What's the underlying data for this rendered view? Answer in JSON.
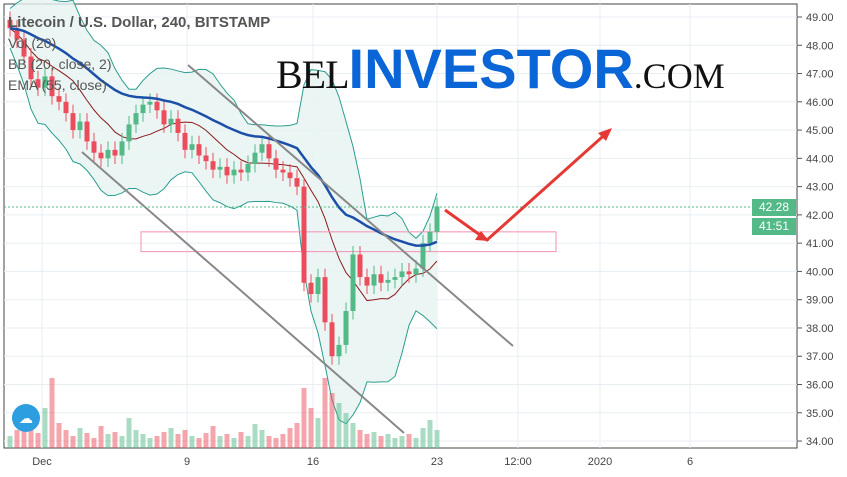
{
  "chart_data": {
    "type": "candlestick",
    "title": "Litecoin / U.S. Dollar, 240, BITSTAMP",
    "indicators": [
      "Vol (20)",
      "BB (20, close, 2)",
      "EMA (55, close)"
    ],
    "y_ticks": [
      "49.00",
      "48.00",
      "47.00",
      "46.00",
      "45.00",
      "44.00",
      "43.00",
      "42.00",
      "41.00",
      "40.00",
      "39.00",
      "38.00",
      "37.00",
      "36.00",
      "35.00",
      "34.00"
    ],
    "ylim": [
      34,
      49
    ],
    "x_ticks": [
      "Dec",
      "9",
      "16",
      "23",
      "12:00",
      "2020",
      "6"
    ],
    "last_price": "42.28",
    "countdown": "41:51",
    "closes": [
      48.6,
      48.2,
      47.6,
      46.8,
      46.5,
      46.9,
      46.2,
      46.0,
      45.6,
      45.0,
      45.3,
      44.6,
      44.2,
      44.0,
      44.3,
      44.1,
      44.6,
      45.2,
      45.6,
      45.9,
      46.0,
      45.7,
      45.2,
      45.4,
      44.9,
      44.3,
      44.5,
      44.1,
      43.9,
      43.6,
      43.7,
      43.4,
      43.6,
      43.5,
      43.8,
      44.2,
      44.5,
      44.0,
      43.6,
      43.5,
      43.3,
      43.0,
      39.6,
      39.2,
      39.8,
      38.2,
      37.0,
      37.4,
      38.6,
      40.6,
      39.8,
      39.5,
      39.9,
      39.6,
      39.7,
      39.8,
      40.0,
      39.9,
      40.1,
      41.0,
      41.4,
      42.3
    ],
    "volumes": [
      12,
      18,
      30,
      22,
      15,
      40,
      70,
      25,
      18,
      12,
      20,
      15,
      10,
      22,
      14,
      16,
      12,
      30,
      18,
      14,
      10,
      12,
      16,
      20,
      14,
      18,
      12,
      10,
      15,
      22,
      12,
      14,
      10,
      16,
      12,
      24,
      18,
      12,
      10,
      14,
      20,
      25,
      60,
      40,
      30,
      70,
      55,
      45,
      35,
      25,
      18,
      14,
      16,
      12,
      14,
      10,
      12,
      14,
      10,
      20,
      28,
      18
    ],
    "trendlines": [
      {
        "from": [
          "Dec 7",
          47.2
        ],
        "to": [
          "Dec 27",
          37.7
        ]
      },
      {
        "from": [
          "Dec 3",
          44.1
        ],
        "to": [
          "Dec 22",
          34.3
        ]
      }
    ],
    "zone": [
      40.7,
      41.4
    ],
    "colors": {
      "up": "#53b987",
      "down": "#eb4d5c",
      "ema": "#1c4fa8",
      "bb": "#2a9d8f",
      "bb_fill": "#e6f4f1",
      "zone": "#f48fb1",
      "arrow": "#e53935"
    }
  },
  "logo": {
    "a": "BEL",
    "b": "INVESTOR",
    "c": ".COM"
  }
}
